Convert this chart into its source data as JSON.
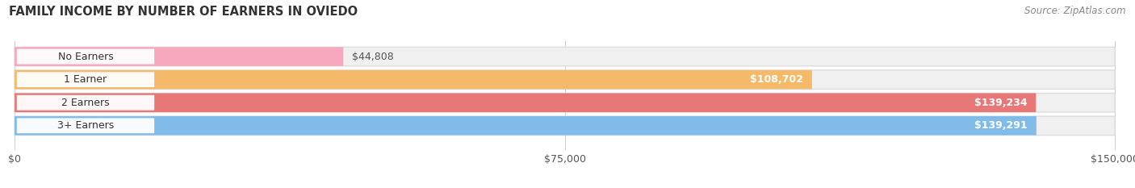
{
  "title": "FAMILY INCOME BY NUMBER OF EARNERS IN OVIEDO",
  "source": "Source: ZipAtlas.com",
  "categories": [
    "No Earners",
    "1 Earner",
    "2 Earners",
    "3+ Earners"
  ],
  "values": [
    44808,
    108702,
    139234,
    139291
  ],
  "bar_colors": [
    "#F5A8BE",
    "#F5B96A",
    "#E87878",
    "#80BBEA"
  ],
  "value_labels": [
    "$44,808",
    "$108,702",
    "$139,234",
    "$139,291"
  ],
  "value_label_colors": [
    "#555555",
    "#ffffff",
    "#ffffff",
    "#ffffff"
  ],
  "value_label_inside": [
    false,
    true,
    true,
    true
  ],
  "xlim": [
    0,
    150000
  ],
  "xticks": [
    0,
    75000,
    150000
  ],
  "xtick_labels": [
    "$0",
    "$75,000",
    "$150,000"
  ],
  "background_color": "#ffffff",
  "bar_bg_color": "#f0f0f0",
  "bar_bg_border_color": "#dddddd",
  "figsize": [
    14.06,
    2.33
  ]
}
